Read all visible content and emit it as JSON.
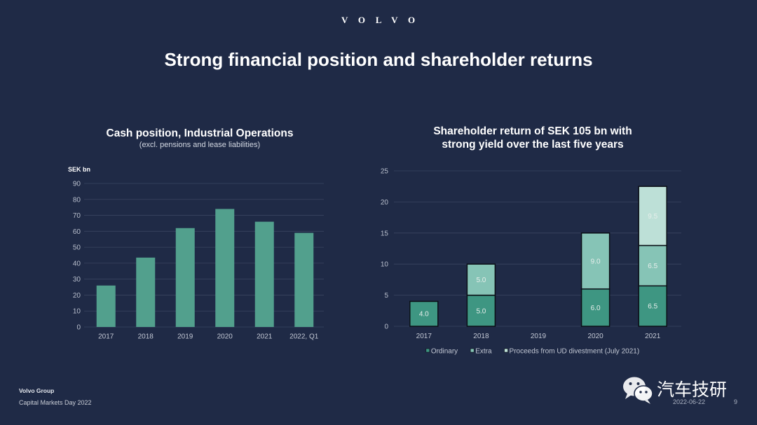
{
  "logo": {
    "text": "VOLVO"
  },
  "slide": {
    "title": "Strong financial position and shareholder returns"
  },
  "colors": {
    "background": "#1f2a46",
    "text": "#ffffff",
    "gridline": "#3a4560",
    "bar_outline": "#0b0f16"
  },
  "chart_data": [
    {
      "type": "bar",
      "title": "Cash position, Industrial Operations",
      "subtitle": "(excl. pensions and lease liabilities)",
      "ylabel": "SEK bn",
      "categories": [
        "2017",
        "2018",
        "2019",
        "2020",
        "2021",
        "2022, Q1"
      ],
      "values": [
        26,
        43.5,
        62,
        74,
        66,
        59
      ],
      "ylim": [
        0,
        90
      ],
      "yticks": [
        0,
        10,
        20,
        30,
        40,
        50,
        60,
        70,
        80,
        90
      ],
      "grid": true,
      "legend": "none",
      "bar_color": "#52a08d"
    },
    {
      "type": "bar",
      "stacked": true,
      "title_lines": [
        "Shareholder return of SEK 105 bn with",
        "strong yield over the last five years"
      ],
      "categories": [
        "2017",
        "2018",
        "2019",
        "2020",
        "2021"
      ],
      "series": [
        {
          "name": "Ordinary",
          "values": [
            4.0,
            5.0,
            null,
            6.0,
            6.5
          ],
          "color": "#3e9682"
        },
        {
          "name": "Extra",
          "values": [
            null,
            5.0,
            null,
            9.0,
            6.5
          ],
          "color": "#86c4b6"
        },
        {
          "name": "Proceeds from UD divestment (July 2021)",
          "values": [
            null,
            null,
            null,
            null,
            9.5
          ],
          "color": "#bde0d7"
        }
      ],
      "ylim": [
        0,
        25
      ],
      "yticks": [
        0,
        5,
        10,
        15,
        20,
        25
      ],
      "data_labels": true,
      "grid": true,
      "legend": "bottom"
    }
  ],
  "footer": {
    "company": "Volvo Group",
    "event": "Capital Markets Day 2022",
    "date": "2022-06-22",
    "page_number": "9"
  },
  "watermark": {
    "icon": "wechat-icon",
    "text": "汽车技研"
  }
}
